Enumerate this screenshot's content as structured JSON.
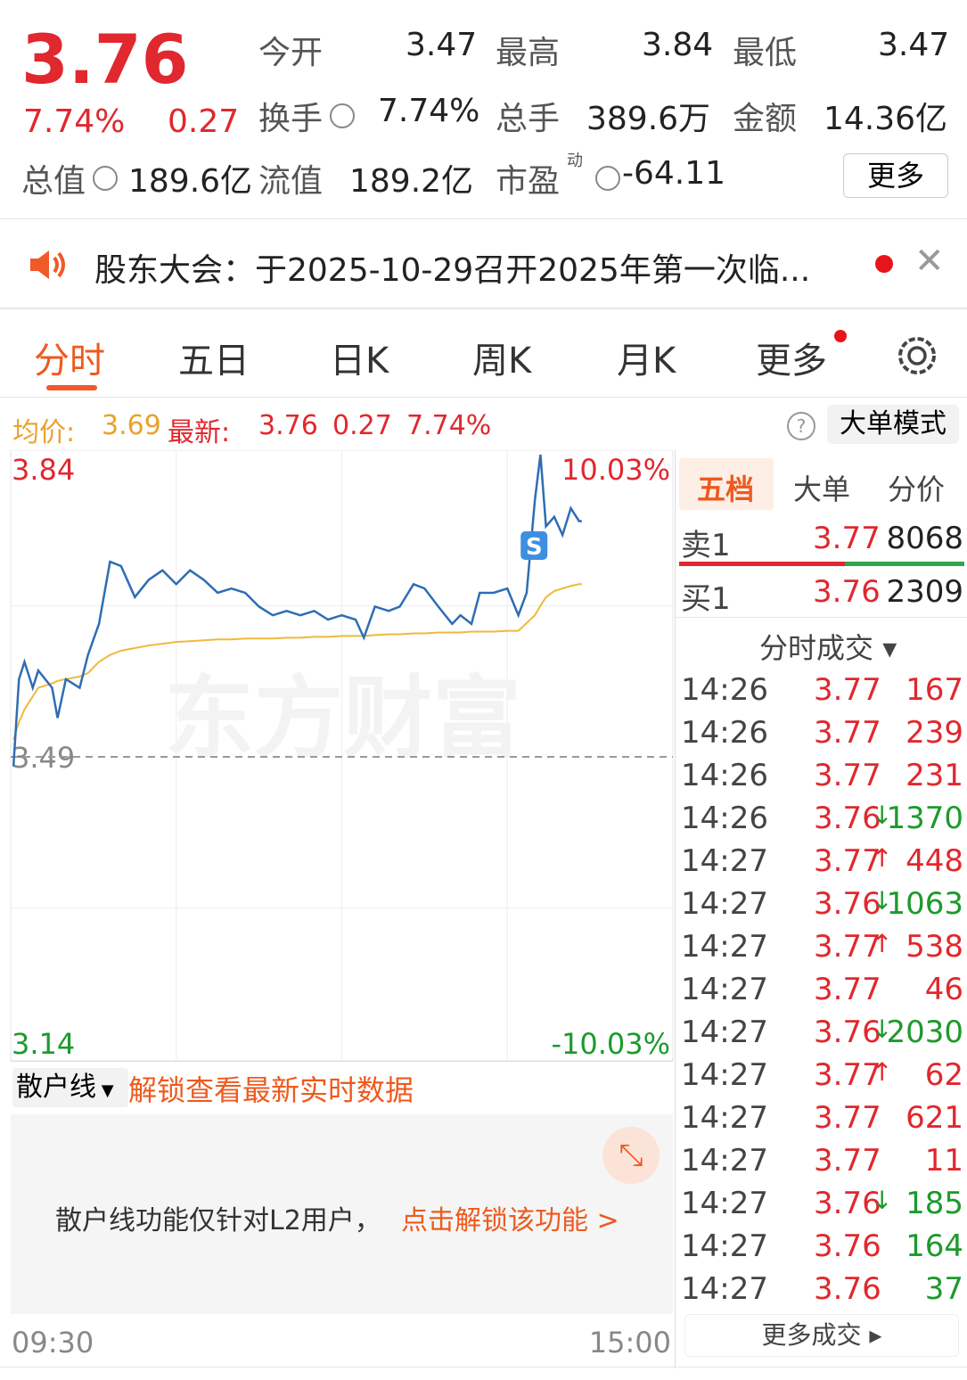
{
  "quote": {
    "price": "3.76",
    "change_pct": "7.74%",
    "change": "0.27",
    "stats": [
      {
        "label": "今开",
        "value": "3.47"
      },
      {
        "label": "最高",
        "value": "3.84"
      },
      {
        "label": "最低",
        "value": "3.47"
      },
      {
        "label": "换手",
        "value": "7.74%"
      },
      {
        "label": "总手",
        "value": "389.6万"
      },
      {
        "label": "金额",
        "value": "14.36亿"
      },
      {
        "label": "总值",
        "value": "189.6亿"
      },
      {
        "label": "流值",
        "value": "189.2亿"
      },
      {
        "label": "市盈",
        "sup": "动",
        "value": "-64.11"
      }
    ],
    "more_button": "更多"
  },
  "notice": {
    "text": "股东大会：于2025-10-29召开2025年第一次临..."
  },
  "tabs": [
    "分时",
    "五日",
    "日K",
    "周K",
    "月K",
    "更多"
  ],
  "info_bar": {
    "avg_label": "均价:",
    "avg": "3.69",
    "latest_label": "最新:",
    "latest": "3.76",
    "change": "0.27",
    "pct": "7.74%",
    "help": "?",
    "mode_button": "大单模式"
  },
  "chart_data": {
    "type": "line",
    "watermark": "东方财富",
    "marker": "S",
    "x": [
      1,
      3,
      5,
      8,
      10,
      15,
      17,
      20,
      25,
      28,
      32,
      36,
      40,
      45,
      50,
      55,
      60,
      65,
      70,
      75,
      80,
      85,
      90,
      95,
      100,
      105,
      110,
      115,
      120,
      125,
      128,
      132,
      137,
      141,
      146,
      150,
      155,
      160,
      163,
      167,
      170,
      175,
      180,
      184,
      187,
      190,
      192,
      194,
      197,
      200,
      203,
      206,
      207
    ],
    "series": [
      {
        "color": "#2e6db4",
        "values": [
          3.479,
          3.58,
          3.6,
          3.57,
          3.59,
          3.57,
          3.535,
          3.58,
          3.57,
          3.608,
          3.644,
          3.716,
          3.711,
          3.675,
          3.695,
          3.706,
          3.69,
          3.706,
          3.695,
          3.68,
          3.685,
          3.68,
          3.664,
          3.654,
          3.659,
          3.654,
          3.659,
          3.649,
          3.654,
          3.649,
          3.628,
          3.664,
          3.659,
          3.664,
          3.69,
          3.685,
          3.664,
          3.644,
          3.654,
          3.644,
          3.68,
          3.68,
          3.685,
          3.654,
          3.68,
          3.788,
          3.84,
          3.757,
          3.768,
          3.747,
          3.778,
          3.763,
          3.763
        ]
      },
      {
        "color": "#f0b93a",
        "values": [
          3.51,
          3.53,
          3.545,
          3.56,
          3.57,
          3.575,
          3.578,
          3.58,
          3.583,
          3.587,
          3.6,
          3.608,
          3.613,
          3.616,
          3.619,
          3.621,
          3.623,
          3.624,
          3.625,
          3.626,
          3.626,
          3.627,
          3.627,
          3.627,
          3.628,
          3.628,
          3.629,
          3.629,
          3.63,
          3.63,
          3.63,
          3.631,
          3.632,
          3.632,
          3.633,
          3.633,
          3.634,
          3.634,
          3.634,
          3.635,
          3.635,
          3.635,
          3.636,
          3.636,
          3.645,
          3.654,
          3.665,
          3.675,
          3.682,
          3.685,
          3.688,
          3.69,
          3.69
        ]
      }
    ],
    "xlim": [
      0,
      240
    ],
    "xticks": [
      {
        "value": 0,
        "label": "09:30"
      },
      {
        "value": 240,
        "label": "15:00"
      }
    ],
    "ylim": [
      3.14,
      3.84
    ],
    "yticks": [
      3.84,
      3.49,
      3.14
    ],
    "y2lim": [
      -10.03,
      10.03
    ],
    "y2ticks": [
      {
        "value": 10.03,
        "label": "10.03%"
      },
      {
        "value": -10.03,
        "label": "-10.03%"
      }
    ]
  },
  "retail": {
    "dropdown": "散户线",
    "unlock": "解锁查看最新实时数据",
    "message": "散户线功能仅针对L2用户，",
    "link": "点击解锁该功能 >"
  },
  "side": {
    "tabs": [
      "五档",
      "大单",
      "分价"
    ],
    "sell": {
      "label": "卖1",
      "price": "3.77",
      "volume": "8068"
    },
    "buy": {
      "label": "买1",
      "price": "3.76",
      "volume": "2309"
    },
    "trades_title": "分时成交",
    "trades": [
      {
        "time": "14:26",
        "price": "3.77",
        "volume": "167",
        "color": "#e0282e"
      },
      {
        "time": "14:26",
        "price": "3.77",
        "volume": "239",
        "color": "#e0282e"
      },
      {
        "time": "14:26",
        "price": "3.77",
        "volume": "231",
        "color": "#e0282e"
      },
      {
        "time": "14:26",
        "price": "3.76",
        "arrow": "↓",
        "volume": "1370",
        "color": "#1c9a2c"
      },
      {
        "time": "14:27",
        "price": "3.77",
        "arrow": "↑",
        "volume": "448",
        "color": "#e0282e"
      },
      {
        "time": "14:27",
        "price": "3.76",
        "arrow": "↓",
        "volume": "1063",
        "color": "#1c9a2c"
      },
      {
        "time": "14:27",
        "price": "3.77",
        "arrow": "↑",
        "volume": "538",
        "color": "#e0282e"
      },
      {
        "time": "14:27",
        "price": "3.77",
        "volume": "46",
        "color": "#e0282e"
      },
      {
        "time": "14:27",
        "price": "3.76",
        "arrow": "↓",
        "volume": "2030",
        "color": "#1c9a2c"
      },
      {
        "time": "14:27",
        "price": "3.77",
        "arrow": "↑",
        "volume": "62",
        "color": "#e0282e"
      },
      {
        "time": "14:27",
        "price": "3.77",
        "volume": "621",
        "color": "#e0282e"
      },
      {
        "time": "14:27",
        "price": "3.77",
        "volume": "11",
        "color": "#e0282e"
      },
      {
        "time": "14:27",
        "price": "3.76",
        "arrow": "↓",
        "volume": "185",
        "color": "#1c9a2c"
      },
      {
        "time": "14:27",
        "price": "3.76",
        "volume": "164",
        "color": "#1c9a2c"
      },
      {
        "time": "14:27",
        "price": "3.76",
        "volume": "37",
        "color": "#1c9a2c"
      }
    ],
    "more_trades": "更多成交"
  }
}
